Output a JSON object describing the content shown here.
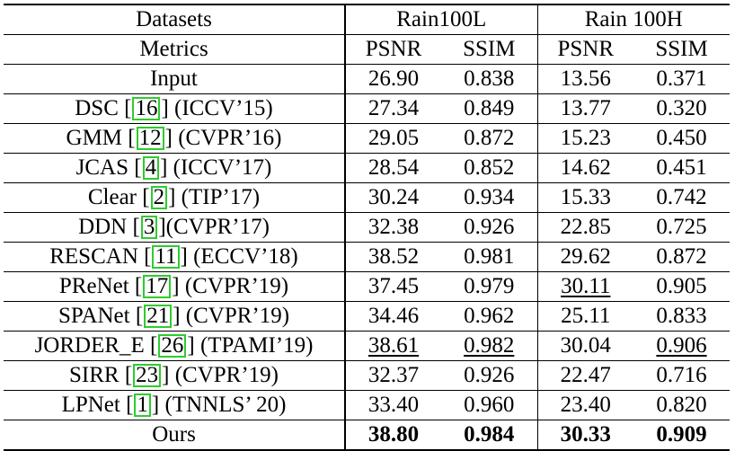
{
  "header": {
    "datasets_label": "Datasets",
    "metrics_label": "Metrics",
    "dataset1": "Rain100L",
    "dataset2": "Rain 100H",
    "psnr": "PSNR",
    "ssim": "SSIM"
  },
  "rows": [
    {
      "pre": "Input",
      "cite": "",
      "post": "",
      "v1": "26.90",
      "v2": "0.838",
      "v3": "13.56",
      "v4": "0.371"
    },
    {
      "pre": "DSC ",
      "cite": "16",
      "post": " (ICCV’15)",
      "v1": "27.34",
      "v2": "0.849",
      "v3": "13.77",
      "v4": "0.320"
    },
    {
      "pre": "GMM ",
      "cite": "12",
      "post": " (CVPR’16)",
      "v1": "29.05",
      "v2": "0.872",
      "v3": "15.23",
      "v4": "0.450"
    },
    {
      "pre": "JCAS ",
      "cite": "4",
      "post": " (ICCV’17)",
      "v1": "28.54",
      "v2": "0.852",
      "v3": "14.62",
      "v4": "0.451"
    },
    {
      "pre": "Clear ",
      "cite": "2",
      "post": " (TIP’17)",
      "v1": "30.24",
      "v2": "0.934",
      "v3": "15.33",
      "v4": "0.742"
    },
    {
      "pre": "DDN ",
      "cite": "3",
      "post": "(CVPR’17)",
      "v1": "32.38",
      "v2": "0.926",
      "v3": "22.85",
      "v4": "0.725"
    },
    {
      "pre": "RESCAN ",
      "cite": "11",
      "post": " (ECCV’18)",
      "v1": "38.52",
      "v2": "0.981",
      "v3": "29.62",
      "v4": "0.872"
    },
    {
      "pre": "PReNet ",
      "cite": "17",
      "post": " (CVPR’19)",
      "v1": "37.45",
      "v2": "0.979",
      "v3": "30.11",
      "v4": "0.905"
    },
    {
      "pre": "SPANet ",
      "cite": "21",
      "post": " (CVPR’19)",
      "v1": "34.46",
      "v2": "0.962",
      "v3": "25.11",
      "v4": "0.833"
    },
    {
      "pre": "JORDER_E ",
      "cite": "26",
      "post": " (TPAMI’19)",
      "v1": "38.61",
      "v2": "0.982",
      "v3": "30.04",
      "v4": "0.906"
    },
    {
      "pre": "SIRR ",
      "cite": "23",
      "post": " (CVPR’19)",
      "v1": "32.37",
      "v2": "0.926",
      "v3": "22.47",
      "v4": "0.716"
    },
    {
      "pre": "LPNet ",
      "cite": "1",
      "post": " (TNNLS’ 20)",
      "v1": "33.40",
      "v2": "0.960",
      "v3": "23.40",
      "v4": "0.820"
    },
    {
      "pre": "Ours",
      "cite": "",
      "post": "",
      "v1": "38.80",
      "v2": "0.984",
      "v3": "30.33",
      "v4": "0.909"
    }
  ]
}
